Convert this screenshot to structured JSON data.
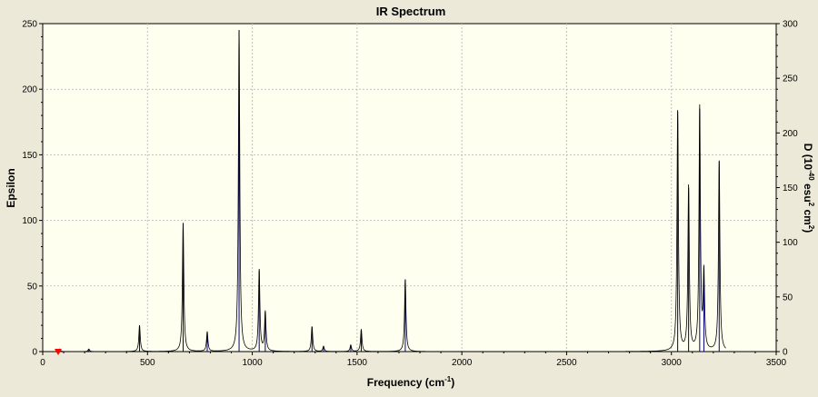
{
  "chart_data": {
    "type": "line",
    "title": "IR Spectrum",
    "xlabel": "Frequency (cm",
    "xlabel_sup": "-1",
    "xlabel_end": ")",
    "ylabel": "Epsilon",
    "y2label_parts": [
      "D (10",
      "-40",
      " esu",
      "2",
      " cm",
      "2",
      ")"
    ],
    "xlim": [
      0,
      3500
    ],
    "ylim": [
      0,
      250
    ],
    "y2lim": [
      0,
      300
    ],
    "x_ticks": [
      0,
      500,
      1000,
      1500,
      2000,
      2500,
      3000,
      3500
    ],
    "y_ticks": [
      0,
      50,
      100,
      150,
      200,
      250
    ],
    "y2_ticks": [
      0,
      50,
      100,
      150,
      200,
      250,
      300
    ],
    "grid": true,
    "colors": {
      "background": "#ece9d8",
      "plot_area": "#fffff0",
      "spectrum_line": "#000000",
      "stick_lines": "#000080",
      "grid": "#c0c0c0",
      "marker": "#ff0000"
    },
    "hwhm": 4,
    "peaks": [
      {
        "x": 80,
        "y": 2
      },
      {
        "x": 220,
        "y": 2
      },
      {
        "x": 462,
        "y": 20
      },
      {
        "x": 670,
        "y": 98
      },
      {
        "x": 785,
        "y": 15
      },
      {
        "x": 937,
        "y": 245
      },
      {
        "x": 1033,
        "y": 62
      },
      {
        "x": 1062,
        "y": 30
      },
      {
        "x": 1285,
        "y": 19
      },
      {
        "x": 1340,
        "y": 4
      },
      {
        "x": 1470,
        "y": 5
      },
      {
        "x": 1520,
        "y": 17
      },
      {
        "x": 1730,
        "y": 55
      },
      {
        "x": 3030,
        "y": 183
      },
      {
        "x": 3082,
        "y": 125
      },
      {
        "x": 3135,
        "y": 185
      },
      {
        "x": 3155,
        "y": 58
      },
      {
        "x": 3228,
        "y": 145
      }
    ],
    "series": [
      {
        "values": []
      }
    ]
  }
}
